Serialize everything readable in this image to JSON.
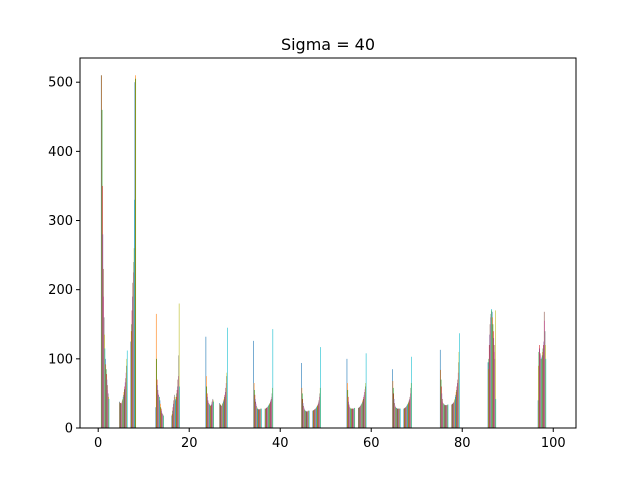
{
  "chart_data": {
    "type": "bar",
    "title": "Sigma = 40",
    "xlabel": "",
    "ylabel": "",
    "xlim": [
      -4,
      105
    ],
    "ylim": [
      0,
      535
    ],
    "xticks": [
      0,
      20,
      40,
      60,
      80,
      100
    ],
    "yticks": [
      0,
      100,
      200,
      300,
      400,
      500
    ],
    "grid": false,
    "legend": "none",
    "bar_colors": [
      "#1f77b4",
      "#ff7f0e",
      "#2ca02c",
      "#d62728",
      "#9467bd",
      "#8c564b",
      "#e377c2",
      "#7f7f7f",
      "#bcbd22",
      "#17becf"
    ],
    "bar_width": 0.09,
    "clusters": [
      {
        "center": 1.5,
        "bars": [
          510,
          510,
          460,
          350,
          280,
          230,
          190,
          160,
          135,
          115,
          100,
          92,
          85,
          78,
          70,
          62,
          55,
          50,
          45,
          42
        ]
      },
      {
        "center": 5.5,
        "bars": [
          38,
          37,
          36,
          36,
          35,
          36,
          38,
          40,
          42,
          45,
          48,
          52,
          56,
          60,
          66,
          72,
          80,
          90,
          100,
          112
        ]
      },
      {
        "center": 8.0,
        "bars": [
          125,
          140,
          150,
          170,
          190,
          210,
          225,
          240,
          260,
          330,
          500,
          510,
          505,
          0,
          0,
          0,
          0,
          0,
          0,
          0
        ]
      },
      {
        "center": 13.5,
        "bars": [
          30,
          165,
          100,
          70,
          62,
          55,
          50,
          48,
          45,
          45,
          40,
          35,
          30,
          28,
          25,
          22,
          20,
          20,
          18,
          18
        ]
      },
      {
        "center": 17.0,
        "bars": [
          18,
          20,
          25,
          30,
          35,
          40,
          45,
          48,
          45,
          42,
          40,
          45,
          50,
          55,
          60,
          70,
          75,
          105,
          180,
          60
        ]
      },
      {
        "center": 24.5,
        "bars": [
          132,
          75,
          60,
          50,
          45,
          40,
          38,
          36,
          35,
          34,
          33,
          32,
          32,
          33,
          35,
          38,
          40,
          42,
          40,
          38
        ]
      },
      {
        "center": 27.5,
        "bars": [
          36,
          35,
          34,
          33,
          32,
          32,
          33,
          35,
          36,
          38,
          40,
          42,
          45,
          48,
          52,
          58,
          65,
          75,
          80,
          145
        ]
      },
      {
        "center": 35.0,
        "bars": [
          126,
          65,
          55,
          48,
          42,
          38,
          35,
          32,
          30,
          28,
          28,
          27,
          27,
          27,
          27,
          27,
          27,
          28,
          28,
          28
        ]
      },
      {
        "center": 37.5,
        "bars": [
          28,
          28,
          28,
          29,
          29,
          30,
          30,
          31,
          32,
          33,
          34,
          35,
          36,
          38,
          40,
          42,
          45,
          50,
          58,
          143
        ]
      },
      {
        "center": 45.5,
        "bars": [
          94,
          58,
          50,
          42,
          36,
          32,
          30,
          28,
          26,
          25,
          25,
          24,
          24,
          24,
          24,
          24,
          25,
          25,
          25,
          25
        ]
      },
      {
        "center": 48.0,
        "bars": [
          25,
          25,
          26,
          26,
          27,
          27,
          28,
          28,
          29,
          30,
          31,
          32,
          33,
          35,
          37,
          40,
          45,
          50,
          58,
          117
        ]
      },
      {
        "center": 55.5,
        "bars": [
          100,
          65,
          55,
          45,
          38,
          34,
          32,
          30,
          29,
          28,
          28,
          28,
          28,
          28,
          28,
          28,
          28,
          28,
          29,
          29
        ]
      },
      {
        "center": 58.0,
        "bars": [
          29,
          29,
          30,
          30,
          31,
          32,
          33,
          34,
          35,
          36,
          38,
          40,
          42,
          45,
          48,
          52,
          56,
          60,
          65,
          108
        ]
      },
      {
        "center": 65.5,
        "bars": [
          85,
          68,
          58,
          50,
          42,
          36,
          33,
          31,
          30,
          29,
          29,
          28,
          28,
          28,
          28,
          28,
          28,
          28,
          28,
          28
        ]
      },
      {
        "center": 68.0,
        "bars": [
          28,
          28,
          29,
          29,
          30,
          30,
          31,
          32,
          33,
          34,
          35,
          36,
          38,
          40,
          42,
          45,
          50,
          58,
          65,
          103
        ]
      },
      {
        "center": 76.0,
        "bars": [
          113,
          84,
          70,
          60,
          50,
          42,
          38,
          36,
          35,
          34,
          34,
          33,
          33,
          33,
          33,
          33,
          33,
          33,
          34,
          34
        ]
      },
      {
        "center": 78.5,
        "bars": [
          34,
          34,
          35,
          35,
          36,
          37,
          38,
          40,
          42,
          45,
          48,
          52,
          55,
          60,
          65,
          70,
          80,
          95,
          110,
          137
        ]
      },
      {
        "center": 86.5,
        "bars": [
          95,
          85,
          100,
          120,
          135,
          150,
          160,
          165,
          170,
          172,
          168,
          160,
          150,
          140,
          130,
          120,
          110,
          100,
          170,
          42
        ]
      },
      {
        "center": 97.5,
        "bars": [
          40,
          90,
          110,
          120,
          115,
          108,
          105,
          100,
          100,
          102,
          105,
          110,
          115,
          120,
          125,
          168,
          155,
          140,
          120,
          100
        ]
      }
    ]
  }
}
